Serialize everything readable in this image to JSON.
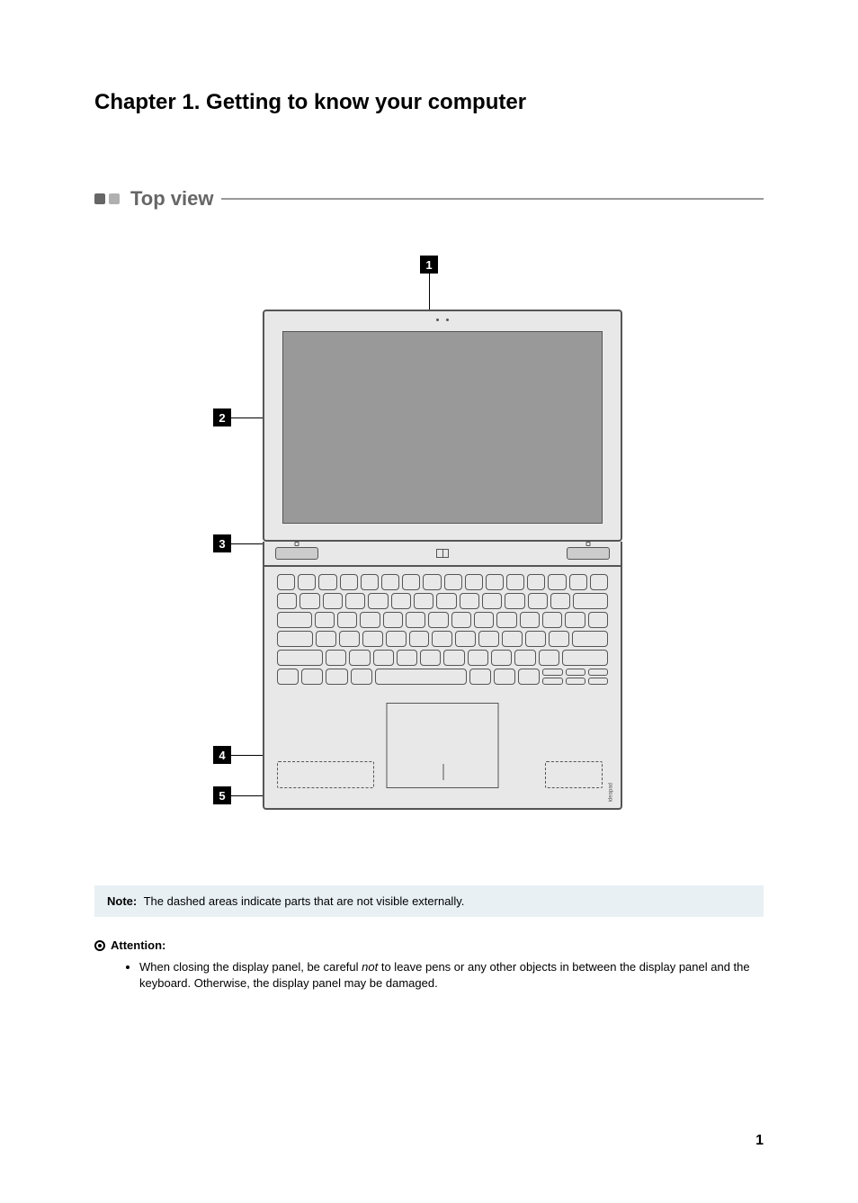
{
  "chapter_title": "Chapter 1. Getting to know your computer",
  "section": {
    "title": "Top view"
  },
  "callouts": {
    "c1": "1",
    "c2": "2",
    "c3": "3",
    "c4": "4",
    "c5": "5"
  },
  "brand_text": "ideapad",
  "note": {
    "label": "Note:",
    "text": "The dashed areas indicate parts that are not visible externally."
  },
  "attention": {
    "label": "Attention:",
    "item_pre": "When closing the display panel, be careful ",
    "item_em": "not",
    "item_post": " to leave pens or any other objects in between the display panel and the keyboard. Otherwise, the display panel may be damaged."
  },
  "page_number": "1",
  "colors": {
    "section_accent": "#666666",
    "note_bg": "#e8f0f4",
    "laptop_fill": "#e8e8e8",
    "screen_fill": "#999999",
    "stroke": "#555555"
  }
}
